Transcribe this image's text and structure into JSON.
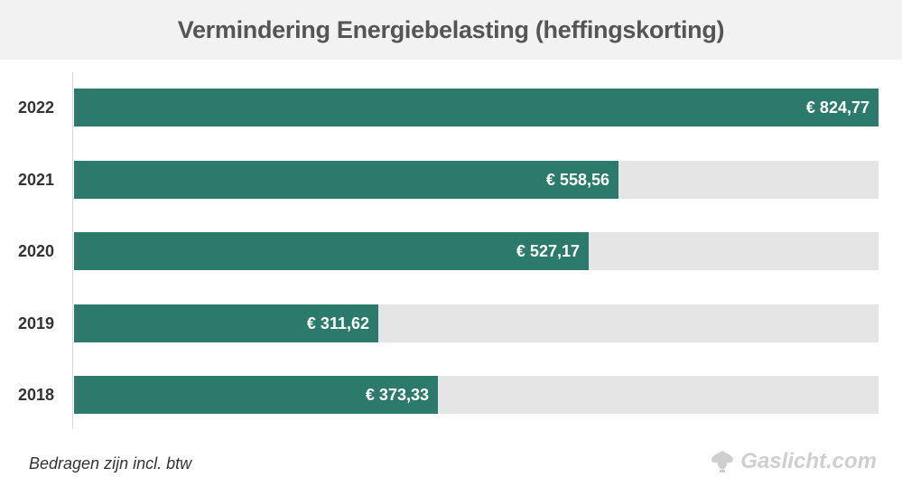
{
  "chart_data": {
    "type": "bar",
    "orientation": "horizontal",
    "title": "Vermindering Energiebelasting (heffingskorting)",
    "categories": [
      "2022",
      "2021",
      "2020",
      "2019",
      "2018"
    ],
    "values": [
      824.77,
      558.56,
      527.17,
      311.62,
      373.33
    ],
    "value_labels": [
      "€ 824,77",
      "€ 558,56",
      "€ 527,17",
      "€ 311,62",
      "€ 373,33"
    ],
    "xlim": [
      0,
      824.77
    ],
    "grid": false,
    "legend": "none"
  },
  "footnote": "Bedragen zijn incl. btw",
  "brand": {
    "name": "Gaslicht.com",
    "icon": "gaslicht-logo-icon"
  },
  "colors": {
    "bar": "#2b7a6b",
    "track": "#e5e5e5",
    "title_bg": "#f2f2f2",
    "brand": "#cfcfcf"
  }
}
